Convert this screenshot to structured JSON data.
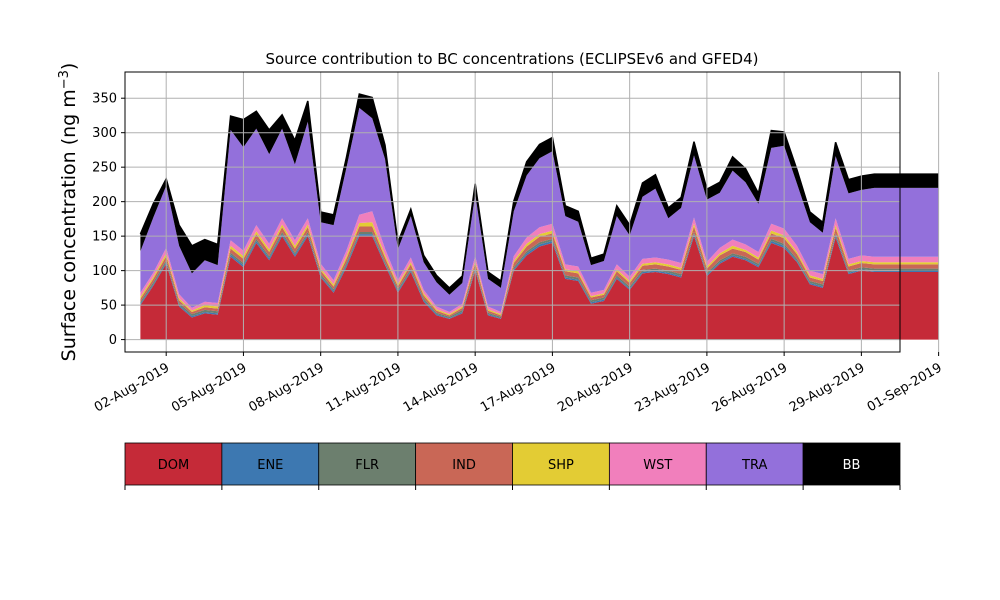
{
  "chart_data": {
    "type": "area",
    "stacked": true,
    "title": "Source contribution to BC concentrations (ECLIPSEv6 and GFED4)",
    "ylabel": "Surface concentration (ng m",
    "ylabel_sup": "−3",
    "ylabel_close": ")",
    "ylim": [
      -18,
      388
    ],
    "yticks": [
      0,
      50,
      100,
      150,
      200,
      250,
      300,
      350
    ],
    "xlim": [
      -0.6,
      29.5
    ],
    "xticks": [
      {
        "pos": 1,
        "label": "02-Aug-2019"
      },
      {
        "pos": 4,
        "label": "05-Aug-2019"
      },
      {
        "pos": 7,
        "label": "08-Aug-2019"
      },
      {
        "pos": 10,
        "label": "11-Aug-2019"
      },
      {
        "pos": 13,
        "label": "14-Aug-2019"
      },
      {
        "pos": 16,
        "label": "17-Aug-2019"
      },
      {
        "pos": 19,
        "label": "20-Aug-2019"
      },
      {
        "pos": 22,
        "label": "23-Aug-2019"
      },
      {
        "pos": 25,
        "label": "26-Aug-2019"
      },
      {
        "pos": 28,
        "label": "29-Aug-2019"
      },
      {
        "pos": 31,
        "label": "01-Sep-2019"
      }
    ],
    "grid": true,
    "x": [
      0.0,
      0.5,
      1.0,
      1.5,
      2.0,
      2.5,
      3.0,
      3.5,
      4.0,
      4.5,
      5.0,
      5.5,
      6.0,
      6.5,
      7.0,
      7.5,
      8.0,
      8.5,
      9.0,
      9.5,
      10.0,
      10.5,
      11.0,
      11.5,
      12.0,
      12.5,
      13.0,
      13.5,
      14.0,
      14.5,
      15.0,
      15.5,
      16.0,
      16.5,
      17.0,
      17.5,
      18.0,
      18.5,
      19.0,
      19.5,
      20.0,
      20.5,
      21.0,
      21.5,
      22.0,
      22.5,
      23.0,
      23.5,
      24.0,
      24.5,
      25.0,
      25.5,
      26.0,
      26.5,
      27.0,
      27.5,
      28.0,
      28.5,
      29.0,
      29.5,
      30.0,
      30.5,
      31.0
    ],
    "series": [
      {
        "name": "DOM",
        "color": "#c52a38",
        "values": [
          50,
          78,
          110,
          48,
          32,
          38,
          36,
          120,
          105,
          140,
          115,
          150,
          120,
          150,
          90,
          68,
          105,
          150,
          150,
          108,
          68,
          98,
          55,
          35,
          30,
          38,
          100,
          35,
          30,
          100,
          122,
          135,
          140,
          88,
          85,
          52,
          56,
          88,
          72,
          96,
          98,
          95,
          90,
          150,
          92,
          110,
          120,
          115,
          105,
          140,
          133,
          112,
          80,
          75,
          148,
          95,
          100,
          98,
          98,
          98,
          98,
          98,
          98
        ]
      },
      {
        "name": "ENE",
        "color": "#3d78b1",
        "values": [
          2,
          2,
          2,
          2,
          2,
          2,
          2,
          3,
          3,
          3,
          3,
          3,
          3,
          3,
          2,
          2,
          3,
          3,
          3,
          2,
          2,
          2,
          2,
          2,
          1,
          2,
          2,
          2,
          1,
          2,
          3,
          3,
          3,
          2,
          2,
          2,
          2,
          2,
          2,
          2,
          2,
          2,
          2,
          3,
          2,
          2,
          2,
          2,
          2,
          3,
          3,
          2,
          2,
          2,
          3,
          2,
          2,
          2,
          2,
          2,
          2,
          2,
          2
        ]
      },
      {
        "name": "FLR",
        "color": "#6c7f6e",
        "values": [
          3,
          3,
          3,
          3,
          3,
          3,
          3,
          3,
          3,
          3,
          3,
          3,
          3,
          3,
          3,
          3,
          3,
          3,
          3,
          3,
          3,
          3,
          3,
          2,
          2,
          3,
          3,
          2,
          2,
          3,
          3,
          3,
          3,
          3,
          3,
          3,
          3,
          3,
          3,
          3,
          3,
          3,
          3,
          3,
          3,
          3,
          3,
          3,
          3,
          3,
          3,
          3,
          3,
          3,
          3,
          3,
          3,
          3,
          3,
          3,
          3,
          3,
          3
        ]
      },
      {
        "name": "IND",
        "color": "#c96756",
        "values": [
          4,
          5,
          6,
          4,
          3,
          4,
          4,
          6,
          6,
          7,
          6,
          7,
          6,
          7,
          5,
          4,
          6,
          8,
          8,
          6,
          4,
          6,
          4,
          3,
          2,
          3,
          6,
          3,
          2,
          6,
          7,
          8,
          8,
          6,
          6,
          4,
          4,
          6,
          5,
          6,
          6,
          6,
          6,
          8,
          6,
          7,
          7,
          7,
          6,
          8,
          8,
          7,
          5,
          5,
          8,
          6,
          6,
          6,
          6,
          6,
          6,
          6,
          6
        ]
      },
      {
        "name": "SHP",
        "color": "#e3cc34",
        "values": [
          3,
          3,
          4,
          3,
          2,
          3,
          3,
          4,
          4,
          4,
          4,
          4,
          4,
          4,
          3,
          3,
          4,
          5,
          6,
          4,
          3,
          3,
          3,
          2,
          2,
          2,
          3,
          2,
          2,
          3,
          4,
          4,
          4,
          3,
          3,
          2,
          2,
          3,
          3,
          3,
          3,
          3,
          3,
          4,
          3,
          3,
          4,
          3,
          3,
          4,
          4,
          3,
          3,
          3,
          4,
          3,
          3,
          3,
          3,
          3,
          3,
          3,
          3
        ]
      },
      {
        "name": "WST",
        "color": "#f17fbc",
        "values": [
          6,
          6,
          8,
          6,
          4,
          5,
          5,
          8,
          8,
          9,
          8,
          9,
          8,
          9,
          7,
          6,
          8,
          12,
          16,
          9,
          6,
          7,
          5,
          4,
          3,
          4,
          7,
          4,
          3,
          7,
          9,
          10,
          10,
          7,
          7,
          5,
          5,
          7,
          6,
          7,
          7,
          7,
          7,
          9,
          7,
          8,
          9,
          8,
          8,
          10,
          10,
          9,
          7,
          7,
          10,
          8,
          8,
          8,
          8,
          8,
          8,
          8,
          8
        ]
      },
      {
        "name": "TRA",
        "color": "#9370db",
        "values": [
          60,
          80,
          90,
          70,
          50,
          60,
          55,
          160,
          150,
          140,
          130,
          130,
          110,
          140,
          60,
          80,
          120,
          155,
          135,
          130,
          45,
          60,
          40,
          35,
          25,
          30,
          90,
          40,
          35,
          65,
          90,
          100,
          105,
          70,
          65,
          40,
          42,
          70,
          60,
          90,
          100,
          60,
          80,
          90,
          90,
          80,
          100,
          90,
          70,
          110,
          120,
          90,
          70,
          60,
          90,
          95,
          95,
          100,
          100,
          100,
          100,
          100,
          100
        ]
      },
      {
        "name": "BB",
        "color": "#000000",
        "values": [
          25,
          20,
          10,
          30,
          40,
          30,
          30,
          20,
          40,
          25,
          35,
          20,
          35,
          30,
          15,
          15,
          15,
          20,
          30,
          20,
          10,
          10,
          10,
          10,
          10,
          10,
          15,
          10,
          10,
          15,
          20,
          20,
          20,
          15,
          15,
          10,
          10,
          15,
          15,
          20,
          20,
          15,
          15,
          20,
          15,
          15,
          20,
          20,
          15,
          25,
          20,
          20,
          15,
          15,
          20,
          20,
          20,
          20,
          20,
          20,
          20,
          20,
          20
        ]
      }
    ],
    "legend": {
      "placement": "bottom",
      "entries": [
        "DOM",
        "ENE",
        "FLR",
        "IND",
        "SHP",
        "WST",
        "TRA",
        "BB"
      ]
    }
  }
}
